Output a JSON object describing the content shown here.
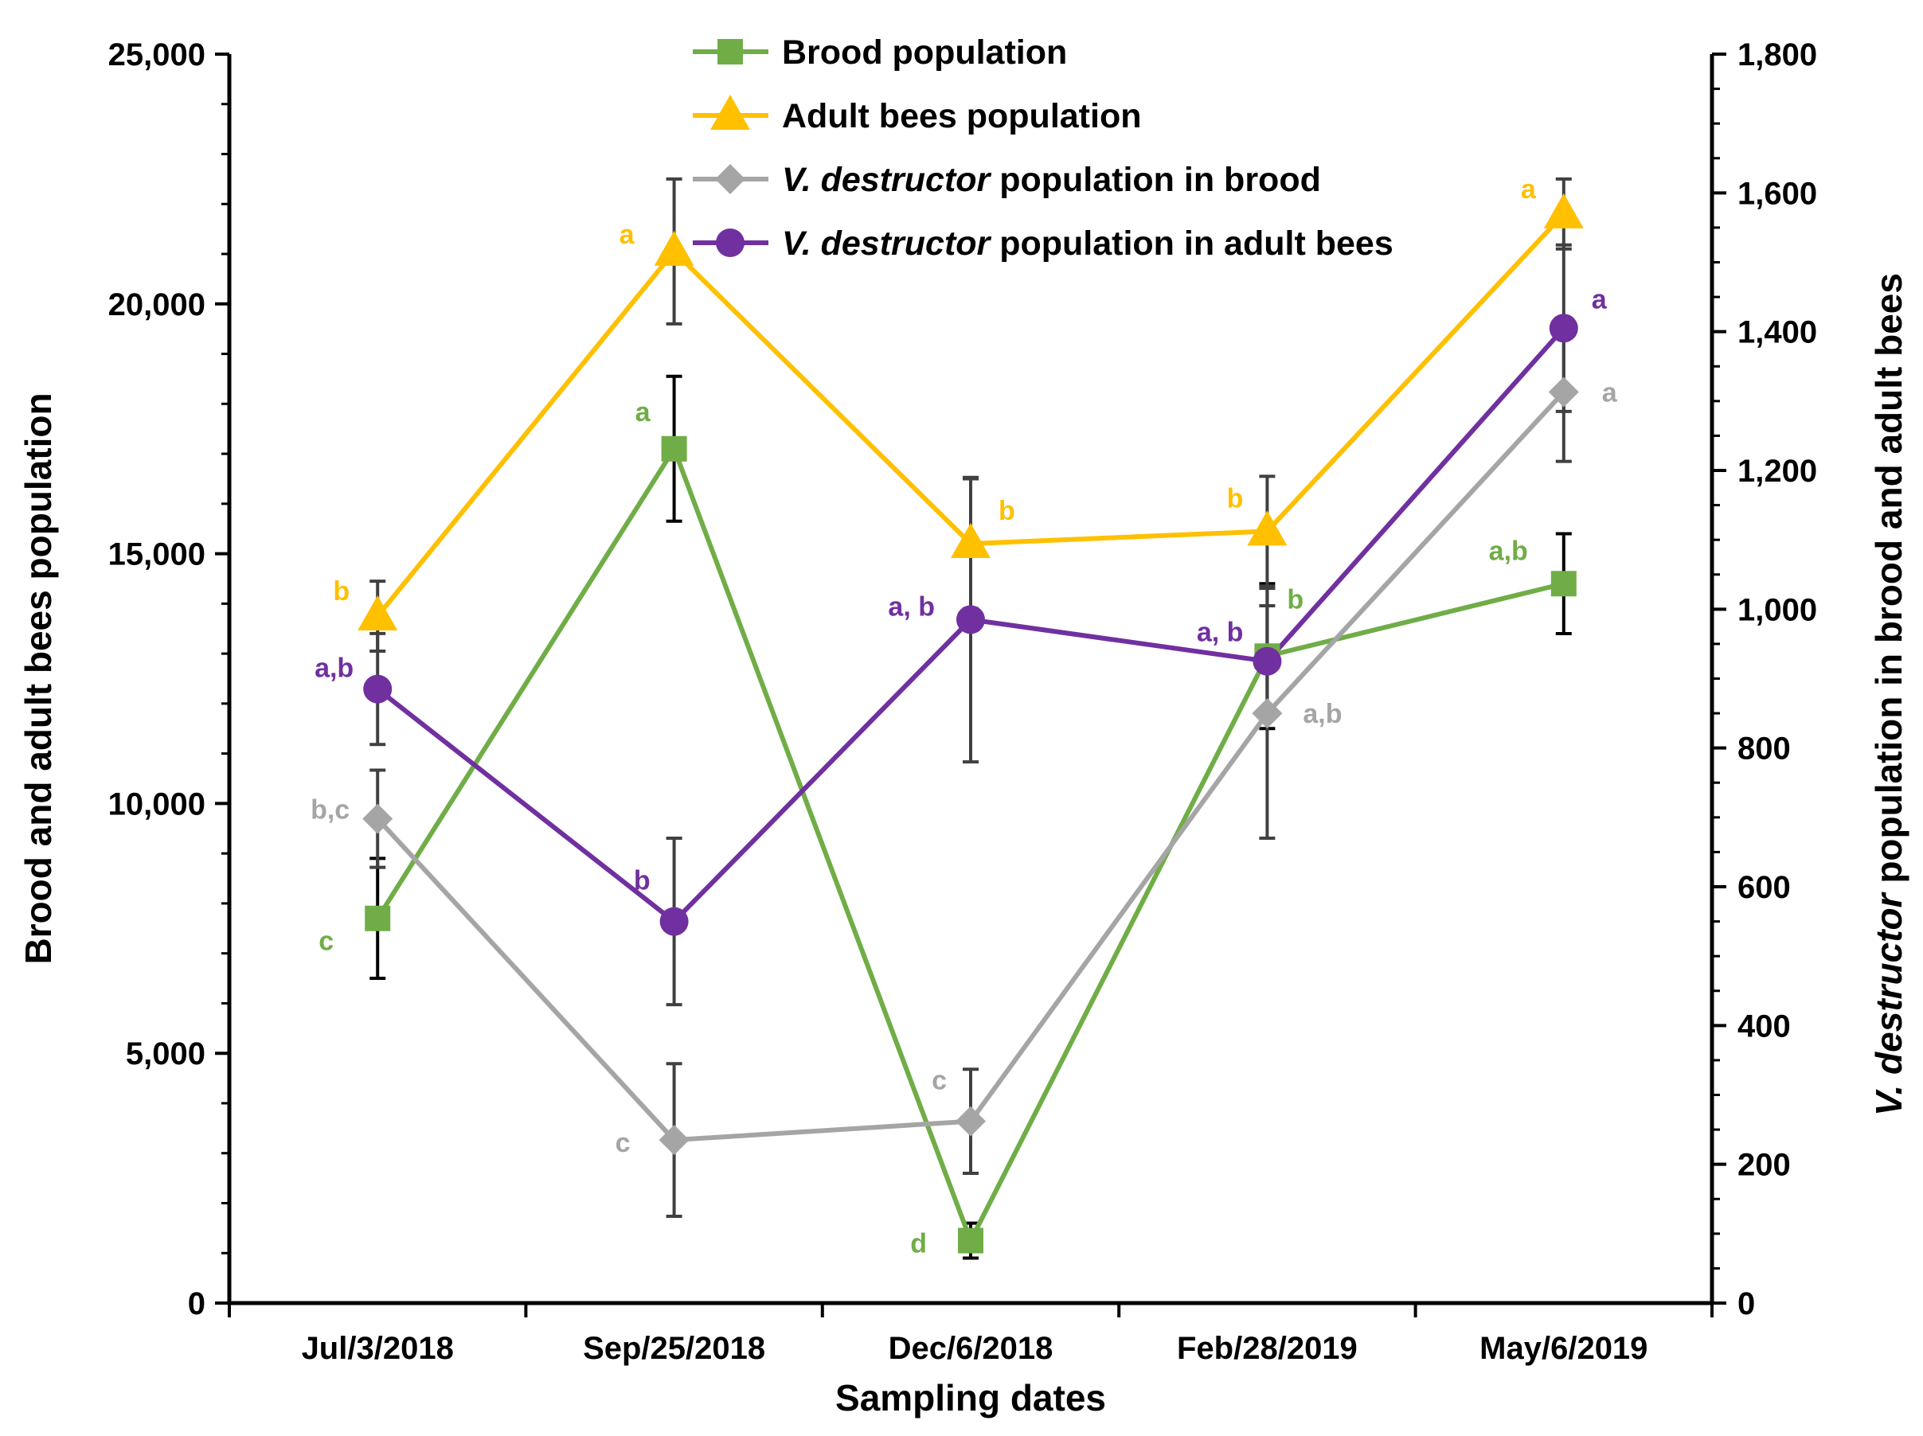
{
  "chart_data": {
    "type": "line",
    "xlabel": "Sampling dates",
    "ylabel_left": "Brood and adult bees population",
    "ylabel_right_italic": "V. destructor",
    "ylabel_right_rest": " population in brood and adult bees",
    "categories": [
      "Jul/3/2018",
      "Sep/25/2018",
      "Dec/6/2018",
      "Feb/28/2019",
      "May/6/2019"
    ],
    "ylim_left": [
      0,
      25000
    ],
    "ylim_right": [
      0,
      1800
    ],
    "left_ticks": [
      {
        "value": 0,
        "label": "0"
      },
      {
        "value": 5000,
        "label": "5,000"
      },
      {
        "value": 10000,
        "label": "10,000"
      },
      {
        "value": 15000,
        "label": "15,000"
      },
      {
        "value": 20000,
        "label": "20,000"
      },
      {
        "value": 25000,
        "label": "25,000"
      }
    ],
    "right_ticks": [
      {
        "value": 0,
        "label": "0"
      },
      {
        "value": 200,
        "label": "200"
      },
      {
        "value": 400,
        "label": "400"
      },
      {
        "value": 600,
        "label": "600"
      },
      {
        "value": 800,
        "label": "800"
      },
      {
        "value": 1000,
        "label": "1,000"
      },
      {
        "value": 1200,
        "label": "1,200"
      },
      {
        "value": 1400,
        "label": "1,400"
      },
      {
        "value": 1600,
        "label": "1,600"
      },
      {
        "value": 1800,
        "label": "1,800"
      }
    ],
    "grid": false,
    "legend_position": "top-center",
    "series": [
      {
        "name": "Brood population",
        "axis": "left",
        "color": "#70AD47",
        "error_color": "#000000",
        "marker": "square",
        "values": [
          7700,
          17100,
          1250,
          12950,
          14400
        ],
        "errors": [
          1200,
          1450,
          350,
          1450,
          1000
        ],
        "sig_labels": [
          "c",
          "a",
          "d",
          "b",
          "a,b"
        ]
      },
      {
        "name": "Adult bees population",
        "axis": "left",
        "color": "#FFC000",
        "error_color": "#404040",
        "marker": "triangle",
        "values": [
          13750,
          21050,
          15200,
          15450,
          21800
        ],
        "errors": [
          700,
          1450,
          1300,
          1100,
          700
        ],
        "sig_labels": [
          "b",
          "a",
          "b",
          "b",
          "a"
        ]
      },
      {
        "name_italic": "V. destructor",
        "name_rest": " population in brood",
        "axis": "right",
        "color": "#A5A5A5",
        "error_color": "#404040",
        "marker": "diamond",
        "values": [
          698,
          235,
          262,
          850,
          1313
        ],
        "errors": [
          70,
          110,
          75,
          180,
          100
        ],
        "sig_labels": [
          "b,c",
          "c",
          "c",
          "a,b",
          "a"
        ]
      },
      {
        "name_italic": "V. destructor",
        "name_rest": " population in adult bees",
        "axis": "right",
        "color": "#7030A0",
        "error_color": "#404040",
        "marker": "circle",
        "values": [
          885,
          550,
          985,
          925,
          1405
        ],
        "errors": [
          80,
          120,
          205,
          80,
          120
        ],
        "sig_labels": [
          "a,b",
          "b",
          "a, b",
          "a, b",
          "a"
        ]
      }
    ]
  }
}
